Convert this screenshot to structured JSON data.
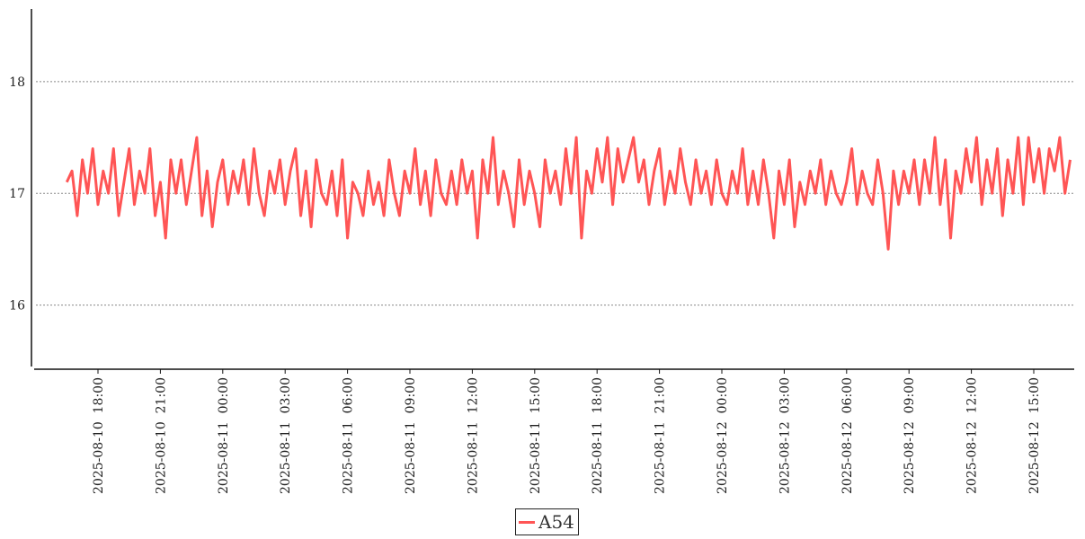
{
  "chart_data": {
    "type": "line",
    "title": "",
    "xlabel": "",
    "ylabel": "",
    "x_range": [
      "2025-08-10 16:00",
      "2025-08-12 17:00"
    ],
    "ylim": [
      15.45,
      18.65
    ],
    "y_ticks": [
      16,
      17,
      18
    ],
    "y_tick_labels": [
      "16",
      "17",
      "18"
    ],
    "x_ticks": [
      "2025-08-10 18:00",
      "2025-08-10 21:00",
      "2025-08-11 00:00",
      "2025-08-11 03:00",
      "2025-08-11 06:00",
      "2025-08-11 09:00",
      "2025-08-11 12:00",
      "2025-08-11 15:00",
      "2025-08-11 18:00",
      "2025-08-11 21:00",
      "2025-08-12 00:00",
      "2025-08-12 03:00",
      "2025-08-12 06:00",
      "2025-08-12 09:00",
      "2025-08-12 12:00",
      "2025-08-12 15:00"
    ],
    "x_tick_labels": [
      "2025-08-10  18:00",
      "2025-08-10  21:00",
      "2025-08-11  00:00",
      "2025-08-11  03:00",
      "2025-08-11  06:00",
      "2025-08-11  09:00",
      "2025-08-11  12:00",
      "2025-08-11  15:00",
      "2025-08-11  18:00",
      "2025-08-11  21:00",
      "2025-08-12  00:00",
      "2025-08-12  03:00",
      "2025-08-12  06:00",
      "2025-08-12  09:00",
      "2025-08-12  12:00",
      "2025-08-12  15:00"
    ],
    "grid": "horizontal-dotted",
    "legend_position": "bottom-center",
    "series": [
      {
        "name": "A54",
        "color": "#ff5555",
        "points": [
          [
            "2025-08-10 16:30",
            17.1
          ],
          [
            "2025-08-10 16:45",
            17.2
          ],
          [
            "2025-08-10 17:00",
            16.8
          ],
          [
            "2025-08-10 17:15",
            17.3
          ],
          [
            "2025-08-10 17:30",
            17.0
          ],
          [
            "2025-08-10 17:45",
            17.4
          ],
          [
            "2025-08-10 18:00",
            16.9
          ],
          [
            "2025-08-10 18:15",
            17.2
          ],
          [
            "2025-08-10 18:30",
            17.0
          ],
          [
            "2025-08-10 18:45",
            17.4
          ],
          [
            "2025-08-10 19:00",
            16.8
          ],
          [
            "2025-08-10 19:15",
            17.1
          ],
          [
            "2025-08-10 19:30",
            17.4
          ],
          [
            "2025-08-10 19:45",
            16.9
          ],
          [
            "2025-08-10 20:00",
            17.2
          ],
          [
            "2025-08-10 20:15",
            17.0
          ],
          [
            "2025-08-10 20:30",
            17.4
          ],
          [
            "2025-08-10 20:45",
            16.8
          ],
          [
            "2025-08-10 21:00",
            17.1
          ],
          [
            "2025-08-10 21:15",
            16.6
          ],
          [
            "2025-08-10 21:30",
            17.3
          ],
          [
            "2025-08-10 21:45",
            17.0
          ],
          [
            "2025-08-10 22:00",
            17.3
          ],
          [
            "2025-08-10 22:15",
            16.9
          ],
          [
            "2025-08-10 22:30",
            17.2
          ],
          [
            "2025-08-10 22:45",
            17.5
          ],
          [
            "2025-08-10 23:00",
            16.8
          ],
          [
            "2025-08-10 23:15",
            17.2
          ],
          [
            "2025-08-10 23:30",
            16.7
          ],
          [
            "2025-08-10 23:45",
            17.1
          ],
          [
            "2025-08-11 00:00",
            17.3
          ],
          [
            "2025-08-11 00:15",
            16.9
          ],
          [
            "2025-08-11 00:30",
            17.2
          ],
          [
            "2025-08-11 00:45",
            17.0
          ],
          [
            "2025-08-11 01:00",
            17.3
          ],
          [
            "2025-08-11 01:15",
            16.9
          ],
          [
            "2025-08-11 01:30",
            17.4
          ],
          [
            "2025-08-11 01:45",
            17.0
          ],
          [
            "2025-08-11 02:00",
            16.8
          ],
          [
            "2025-08-11 02:15",
            17.2
          ],
          [
            "2025-08-11 02:30",
            17.0
          ],
          [
            "2025-08-11 02:45",
            17.3
          ],
          [
            "2025-08-11 03:00",
            16.9
          ],
          [
            "2025-08-11 03:15",
            17.2
          ],
          [
            "2025-08-11 03:30",
            17.4
          ],
          [
            "2025-08-11 03:45",
            16.8
          ],
          [
            "2025-08-11 04:00",
            17.2
          ],
          [
            "2025-08-11 04:15",
            16.7
          ],
          [
            "2025-08-11 04:30",
            17.3
          ],
          [
            "2025-08-11 04:45",
            17.0
          ],
          [
            "2025-08-11 05:00",
            16.9
          ],
          [
            "2025-08-11 05:15",
            17.2
          ],
          [
            "2025-08-11 05:30",
            16.8
          ],
          [
            "2025-08-11 05:45",
            17.3
          ],
          [
            "2025-08-11 06:00",
            16.6
          ],
          [
            "2025-08-11 06:15",
            17.1
          ],
          [
            "2025-08-11 06:30",
            17.0
          ],
          [
            "2025-08-11 06:45",
            16.8
          ],
          [
            "2025-08-11 07:00",
            17.2
          ],
          [
            "2025-08-11 07:15",
            16.9
          ],
          [
            "2025-08-11 07:30",
            17.1
          ],
          [
            "2025-08-11 07:45",
            16.8
          ],
          [
            "2025-08-11 08:00",
            17.3
          ],
          [
            "2025-08-11 08:15",
            17.0
          ],
          [
            "2025-08-11 08:30",
            16.8
          ],
          [
            "2025-08-11 08:45",
            17.2
          ],
          [
            "2025-08-11 09:00",
            17.0
          ],
          [
            "2025-08-11 09:15",
            17.4
          ],
          [
            "2025-08-11 09:30",
            16.9
          ],
          [
            "2025-08-11 09:45",
            17.2
          ],
          [
            "2025-08-11 10:00",
            16.8
          ],
          [
            "2025-08-11 10:15",
            17.3
          ],
          [
            "2025-08-11 10:30",
            17.0
          ],
          [
            "2025-08-11 10:45",
            16.9
          ],
          [
            "2025-08-11 11:00",
            17.2
          ],
          [
            "2025-08-11 11:15",
            16.9
          ],
          [
            "2025-08-11 11:30",
            17.3
          ],
          [
            "2025-08-11 11:45",
            17.0
          ],
          [
            "2025-08-11 12:00",
            17.2
          ],
          [
            "2025-08-11 12:15",
            16.6
          ],
          [
            "2025-08-11 12:30",
            17.3
          ],
          [
            "2025-08-11 12:45",
            17.0
          ],
          [
            "2025-08-11 13:00",
            17.5
          ],
          [
            "2025-08-11 13:15",
            16.9
          ],
          [
            "2025-08-11 13:30",
            17.2
          ],
          [
            "2025-08-11 13:45",
            17.0
          ],
          [
            "2025-08-11 14:00",
            16.7
          ],
          [
            "2025-08-11 14:15",
            17.3
          ],
          [
            "2025-08-11 14:30",
            16.9
          ],
          [
            "2025-08-11 14:45",
            17.2
          ],
          [
            "2025-08-11 15:00",
            17.0
          ],
          [
            "2025-08-11 15:15",
            16.7
          ],
          [
            "2025-08-11 15:30",
            17.3
          ],
          [
            "2025-08-11 15:45",
            17.0
          ],
          [
            "2025-08-11 16:00",
            17.2
          ],
          [
            "2025-08-11 16:15",
            16.9
          ],
          [
            "2025-08-11 16:30",
            17.4
          ],
          [
            "2025-08-11 16:45",
            17.0
          ],
          [
            "2025-08-11 17:00",
            17.5
          ],
          [
            "2025-08-11 17:15",
            16.6
          ],
          [
            "2025-08-11 17:30",
            17.2
          ],
          [
            "2025-08-11 17:45",
            17.0
          ],
          [
            "2025-08-11 18:00",
            17.4
          ],
          [
            "2025-08-11 18:15",
            17.1
          ],
          [
            "2025-08-11 18:30",
            17.5
          ],
          [
            "2025-08-11 18:45",
            16.9
          ],
          [
            "2025-08-11 19:00",
            17.4
          ],
          [
            "2025-08-11 19:15",
            17.1
          ],
          [
            "2025-08-11 19:30",
            17.3
          ],
          [
            "2025-08-11 19:45",
            17.5
          ],
          [
            "2025-08-11 20:00",
            17.1
          ],
          [
            "2025-08-11 20:15",
            17.3
          ],
          [
            "2025-08-11 20:30",
            16.9
          ],
          [
            "2025-08-11 20:45",
            17.2
          ],
          [
            "2025-08-11 21:00",
            17.4
          ],
          [
            "2025-08-11 21:15",
            16.9
          ],
          [
            "2025-08-11 21:30",
            17.2
          ],
          [
            "2025-08-11 21:45",
            17.0
          ],
          [
            "2025-08-11 22:00",
            17.4
          ],
          [
            "2025-08-11 22:15",
            17.1
          ],
          [
            "2025-08-11 22:30",
            16.9
          ],
          [
            "2025-08-11 22:45",
            17.3
          ],
          [
            "2025-08-11 23:00",
            17.0
          ],
          [
            "2025-08-11 23:15",
            17.2
          ],
          [
            "2025-08-11 23:30",
            16.9
          ],
          [
            "2025-08-11 23:45",
            17.3
          ],
          [
            "2025-08-12 00:00",
            17.0
          ],
          [
            "2025-08-12 00:15",
            16.9
          ],
          [
            "2025-08-12 00:30",
            17.2
          ],
          [
            "2025-08-12 00:45",
            17.0
          ],
          [
            "2025-08-12 01:00",
            17.4
          ],
          [
            "2025-08-12 01:15",
            16.9
          ],
          [
            "2025-08-12 01:30",
            17.2
          ],
          [
            "2025-08-12 01:45",
            16.9
          ],
          [
            "2025-08-12 02:00",
            17.3
          ],
          [
            "2025-08-12 02:15",
            17.0
          ],
          [
            "2025-08-12 02:30",
            16.6
          ],
          [
            "2025-08-12 02:45",
            17.2
          ],
          [
            "2025-08-12 03:00",
            16.9
          ],
          [
            "2025-08-12 03:15",
            17.3
          ],
          [
            "2025-08-12 03:30",
            16.7
          ],
          [
            "2025-08-12 03:45",
            17.1
          ],
          [
            "2025-08-12 04:00",
            16.9
          ],
          [
            "2025-08-12 04:15",
            17.2
          ],
          [
            "2025-08-12 04:30",
            17.0
          ],
          [
            "2025-08-12 04:45",
            17.3
          ],
          [
            "2025-08-12 05:00",
            16.9
          ],
          [
            "2025-08-12 05:15",
            17.2
          ],
          [
            "2025-08-12 05:30",
            17.0
          ],
          [
            "2025-08-12 05:45",
            16.9
          ],
          [
            "2025-08-12 06:00",
            17.1
          ],
          [
            "2025-08-12 06:15",
            17.4
          ],
          [
            "2025-08-12 06:30",
            16.9
          ],
          [
            "2025-08-12 06:45",
            17.2
          ],
          [
            "2025-08-12 07:00",
            17.0
          ],
          [
            "2025-08-12 07:15",
            16.9
          ],
          [
            "2025-08-12 07:30",
            17.3
          ],
          [
            "2025-08-12 07:45",
            17.0
          ],
          [
            "2025-08-12 08:00",
            16.5
          ],
          [
            "2025-08-12 08:15",
            17.2
          ],
          [
            "2025-08-12 08:30",
            16.9
          ],
          [
            "2025-08-12 08:45",
            17.2
          ],
          [
            "2025-08-12 09:00",
            17.0
          ],
          [
            "2025-08-12 09:15",
            17.3
          ],
          [
            "2025-08-12 09:30",
            16.9
          ],
          [
            "2025-08-12 09:45",
            17.3
          ],
          [
            "2025-08-12 10:00",
            17.0
          ],
          [
            "2025-08-12 10:15",
            17.5
          ],
          [
            "2025-08-12 10:30",
            16.9
          ],
          [
            "2025-08-12 10:45",
            17.3
          ],
          [
            "2025-08-12 11:00",
            16.6
          ],
          [
            "2025-08-12 11:15",
            17.2
          ],
          [
            "2025-08-12 11:30",
            17.0
          ],
          [
            "2025-08-12 11:45",
            17.4
          ],
          [
            "2025-08-12 12:00",
            17.1
          ],
          [
            "2025-08-12 12:15",
            17.5
          ],
          [
            "2025-08-12 12:30",
            16.9
          ],
          [
            "2025-08-12 12:45",
            17.3
          ],
          [
            "2025-08-12 13:00",
            17.0
          ],
          [
            "2025-08-12 13:15",
            17.4
          ],
          [
            "2025-08-12 13:30",
            16.8
          ],
          [
            "2025-08-12 13:45",
            17.3
          ],
          [
            "2025-08-12 14:00",
            17.0
          ],
          [
            "2025-08-12 14:15",
            17.5
          ],
          [
            "2025-08-12 14:30",
            16.9
          ],
          [
            "2025-08-12 14:45",
            17.5
          ],
          [
            "2025-08-12 15:00",
            17.1
          ],
          [
            "2025-08-12 15:15",
            17.4
          ],
          [
            "2025-08-12 15:30",
            17.0
          ],
          [
            "2025-08-12 15:45",
            17.4
          ],
          [
            "2025-08-12 16:00",
            17.2
          ],
          [
            "2025-08-12 16:15",
            17.5
          ],
          [
            "2025-08-12 16:30",
            17.0
          ],
          [
            "2025-08-12 16:45",
            17.3
          ]
        ]
      }
    ]
  }
}
